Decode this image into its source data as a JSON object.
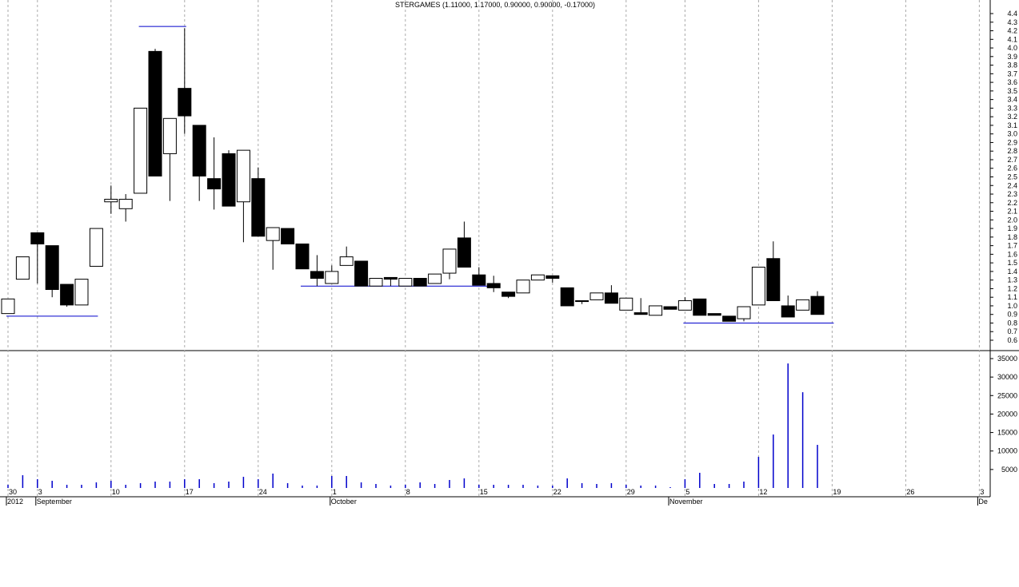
{
  "chart_data": {
    "type": "candlestick",
    "title": "STERGAMES (1.11000, 1.17000, 0.90000, 0.90000, -0.17000)",
    "categories": [
      "2012-08-30",
      "2012-08-31",
      "2012-09-03",
      "2012-09-04",
      "2012-09-05",
      "2012-09-06",
      "2012-09-07",
      "2012-09-10",
      "2012-09-11",
      "2012-09-12",
      "2012-09-13",
      "2012-09-14",
      "2012-09-17",
      "2012-09-18",
      "2012-09-19",
      "2012-09-20",
      "2012-09-21",
      "2012-09-24",
      "2012-09-25",
      "2012-09-26",
      "2012-09-27",
      "2012-09-28",
      "2012-10-01",
      "2012-10-02",
      "2012-10-03",
      "2012-10-04",
      "2012-10-05",
      "2012-10-08",
      "2012-10-09",
      "2012-10-10",
      "2012-10-11",
      "2012-10-12",
      "2012-10-15",
      "2012-10-16",
      "2012-10-17",
      "2012-10-18",
      "2012-10-19",
      "2012-10-22",
      "2012-10-23",
      "2012-10-24",
      "2012-10-25",
      "2012-10-26",
      "2012-10-29",
      "2012-10-30",
      "2012-10-31",
      "2012-11-01",
      "2012-11-05",
      "2012-11-06",
      "2012-11-07",
      "2012-11-08",
      "2012-11-09",
      "2012-11-12",
      "2012-11-13",
      "2012-11-14",
      "2012-11-15",
      "2012-11-16",
      "2012-11-19",
      "2012-11-20",
      "2012-11-21",
      "2012-11-22",
      "2012-11-23",
      "2012-11-26",
      "2012-11-27",
      "2012-11-28",
      "2012-11-29",
      "2012-11-30",
      "2012-12-03"
    ],
    "open": [
      0.91,
      1.31,
      1.85,
      1.7,
      1.25,
      1.01,
      1.46,
      2.21,
      2.13,
      2.31,
      3.96,
      2.77,
      3.53,
      3.1,
      2.48,
      2.77,
      2.21,
      2.48,
      1.76,
      1.9,
      1.72,
      1.4,
      1.26,
      1.47,
      1.52,
      1.23,
      1.33,
      1.23,
      1.32,
      1.26,
      1.38,
      1.79,
      1.36,
      1.26,
      1.16,
      1.15,
      1.3,
      1.35,
      1.21,
      1.06,
      1.07,
      1.15,
      0.95,
      0.92,
      0.89,
      0.99,
      0.95,
      1.08,
      0.91,
      0.88,
      0.85,
      1.01,
      1.55,
      1.0,
      0.95,
      1.11,
      null,
      null,
      null,
      null,
      null,
      null,
      null,
      null,
      null,
      null,
      null
    ],
    "high": [
      1.08,
      1.57,
      1.85,
      1.7,
      1.25,
      1.31,
      1.9,
      2.4,
      2.3,
      3.3,
      3.99,
      3.18,
      4.23,
      3.1,
      2.96,
      2.81,
      2.81,
      2.61,
      1.91,
      1.9,
      1.72,
      1.59,
      1.47,
      1.69,
      1.52,
      1.32,
      1.33,
      1.32,
      1.32,
      1.37,
      1.66,
      1.98,
      1.45,
      1.35,
      1.16,
      1.3,
      1.36,
      1.35,
      1.21,
      1.06,
      1.15,
      1.24,
      1.09,
      1.09,
      1.0,
      0.99,
      1.1,
      1.08,
      0.91,
      0.88,
      0.99,
      1.45,
      1.75,
      1.12,
      1.07,
      1.17,
      null,
      null,
      null,
      null,
      null,
      null,
      null,
      null,
      null,
      null,
      null
    ],
    "low": [
      0.91,
      1.31,
      1.26,
      1.1,
      0.99,
      1.01,
      1.46,
      2.07,
      1.98,
      2.31,
      2.51,
      2.22,
      3.0,
      2.22,
      2.12,
      2.16,
      1.74,
      1.81,
      1.42,
      1.72,
      1.43,
      1.23,
      1.26,
      1.47,
      1.23,
      1.23,
      1.23,
      1.23,
      1.23,
      1.26,
      1.31,
      1.45,
      1.24,
      1.16,
      1.09,
      1.15,
      1.3,
      1.27,
      1.0,
      1.02,
      1.07,
      1.03,
      0.95,
      0.9,
      0.89,
      0.96,
      0.95,
      0.89,
      0.89,
      0.82,
      0.82,
      1.01,
      1.06,
      0.87,
      0.95,
      0.9,
      null,
      null,
      null,
      null,
      null,
      null,
      null,
      null,
      null,
      null,
      null
    ],
    "close": [
      1.08,
      1.57,
      1.72,
      1.19,
      1.01,
      1.31,
      1.9,
      2.24,
      2.24,
      3.3,
      2.51,
      3.18,
      3.21,
      2.51,
      2.36,
      2.16,
      2.81,
      1.81,
      1.91,
      1.72,
      1.43,
      1.32,
      1.4,
      1.57,
      1.23,
      1.32,
      1.31,
      1.32,
      1.23,
      1.37,
      1.66,
      1.45,
      1.24,
      1.21,
      1.11,
      1.3,
      1.36,
      1.32,
      1.0,
      1.05,
      1.15,
      1.03,
      1.09,
      0.9,
      1.0,
      0.96,
      1.06,
      0.89,
      0.89,
      0.82,
      0.99,
      1.45,
      1.06,
      0.87,
      1.07,
      0.9,
      null,
      null,
      null,
      null,
      null,
      null,
      null,
      null,
      null,
      null,
      null
    ],
    "volume": [
      860,
      3450,
      2370,
      1940,
      860,
      860,
      1510,
      1940,
      860,
      1300,
      1730,
      1730,
      2370,
      2370,
      1300,
      1730,
      3020,
      2370,
      3890,
      1300,
      650,
      650,
      3240,
      3240,
      1510,
      1080,
      650,
      860,
      1510,
      1080,
      2160,
      2590,
      860,
      860,
      860,
      860,
      650,
      650,
      2590,
      1300,
      1080,
      1300,
      860,
      650,
      650,
      220,
      2370,
      4100,
      1080,
      1080,
      1730,
      8420,
      14460,
      33670,
      25900,
      11660,
      null,
      null,
      null,
      null,
      null,
      null,
      null,
      null,
      null,
      null,
      null
    ],
    "levels": [
      {
        "from": "2012-08-30",
        "to": "2012-09-07",
        "value": 0.88
      },
      {
        "from": "2012-09-12",
        "to": "2012-09-17",
        "value": 4.25
      },
      {
        "from": "2012-09-27",
        "to": "2012-10-16",
        "value": 1.23
      },
      {
        "from": "2012-11-05",
        "to": "2012-11-19",
        "value": 0.8
      }
    ],
    "ylim": [
      0.6,
      4.4
    ],
    "yticks": [
      0.6,
      0.7,
      0.8,
      0.9,
      {
        "value": 1.0,
        "label": "1.0"
      },
      1.1,
      1.2,
      1.3,
      1.4,
      1.5,
      1.6,
      1.7,
      1.8,
      1.9,
      {
        "value": 2.0,
        "label": "2.0"
      },
      2.1,
      2.2,
      2.3,
      2.4,
      2.5,
      2.6,
      2.7,
      2.8,
      2.9,
      {
        "value": 3.0,
        "label": "3.0"
      },
      3.1,
      3.2,
      3.3,
      3.4,
      3.5,
      3.6,
      3.7,
      3.8,
      3.9,
      {
        "value": 4.0,
        "label": "4.0"
      },
      4.1,
      4.2,
      4.3,
      4.4
    ],
    "vticks": [
      5000,
      10000,
      15000,
      20000,
      25000,
      30000,
      35000
    ],
    "xticks": [
      {
        "value": "2012-08-30",
        "label": "30"
      },
      {
        "value": "2012-09-03",
        "label": "3"
      },
      {
        "value": "2012-09-10",
        "label": "10"
      },
      {
        "value": "2012-09-17",
        "label": "17"
      },
      {
        "value": "2012-09-24",
        "label": "24"
      },
      {
        "value": "2012-10-01",
        "label": "1"
      },
      {
        "value": "2012-10-08",
        "label": "8"
      },
      {
        "value": "2012-10-15",
        "label": "15"
      },
      {
        "value": "2012-10-22",
        "label": "22"
      },
      {
        "value": "2012-10-29",
        "label": "29"
      },
      {
        "value": "2012-11-05",
        "label": "5"
      },
      {
        "value": "2012-11-12",
        "label": "12"
      },
      {
        "value": "2012-11-19",
        "label": "19"
      },
      {
        "value": "2012-11-26",
        "label": "26"
      },
      {
        "value": "2012-12-03",
        "label": "3"
      }
    ],
    "month_labels": [
      {
        "value": "2012-08-30",
        "label": "2012"
      },
      {
        "value": "2012-09-03",
        "label": "September"
      },
      {
        "value": "2012-10-01",
        "label": "October"
      },
      {
        "value": "2012-11-01",
        "label": "November"
      },
      {
        "value": "2012-12-03",
        "label": "De"
      }
    ],
    "candle_colors": {
      "up": "#ffffff",
      "down": "#000000"
    },
    "volume_color": "#0000cc",
    "level_color": "#0000cc"
  }
}
